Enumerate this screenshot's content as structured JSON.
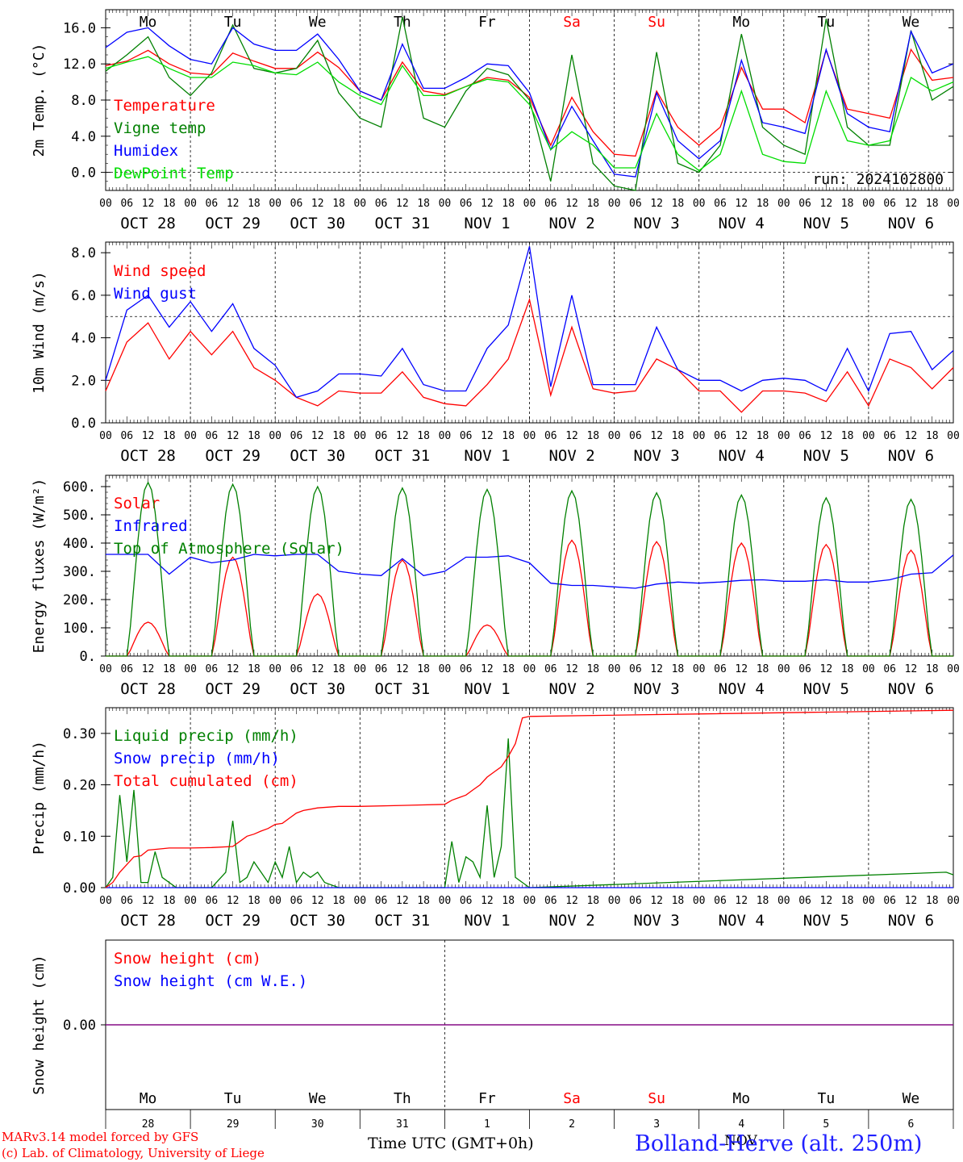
{
  "footer": {
    "model_line": "MARv3.14 model forced by GFS",
    "lab_line": "(c) Lab. of Climatology, University of Liege",
    "time_axis_label": "Time UTC (GMT+0h)",
    "station_label": "Bolland-Herve (alt. 250m)",
    "bottom_month": "NOV"
  },
  "colors": {
    "red": "#ff0000",
    "green": "#008000",
    "blue": "#0000ff",
    "lightgreen": "#00dd00",
    "purple": "#800080",
    "black": "#000000"
  },
  "days": {
    "weekdays": [
      "Mo",
      "Tu",
      "We",
      "Th",
      "Fr",
      "Sa",
      "Su",
      "Mo",
      "Tu",
      "We"
    ],
    "weekday_colors": [
      "black",
      "black",
      "black",
      "black",
      "black",
      "red",
      "red",
      "black",
      "black",
      "black"
    ],
    "dates": [
      "OCT 28",
      "OCT 29",
      "OCT 30",
      "OCT 31",
      "NOV 1",
      "NOV 2",
      "NOV 3",
      "NOV 4",
      "NOV 5",
      "NOV 6"
    ],
    "day_numbers": [
      "28",
      "29",
      "30",
      "31",
      "1",
      "2",
      "3",
      "4",
      "5",
      "6"
    ],
    "hour_ticks": [
      "00",
      "06",
      "12",
      "18"
    ],
    "final_hour": "00"
  },
  "chart_data": [
    {
      "type": "line",
      "id": "temp",
      "ylabel": "2m Temp. (°C)",
      "ylim": [
        -2.0,
        18.0
      ],
      "yticks": [
        "0.0",
        "4.0",
        "8.0",
        "12.0",
        "16.0"
      ],
      "yticks_values": [
        0,
        4,
        8,
        12,
        16
      ],
      "reference_line": 0,
      "annotation": "run: 2024102800",
      "x_unit": "hours since OCT 28 00 UTC",
      "x": [
        0,
        6,
        12,
        18,
        24,
        30,
        36,
        42,
        48,
        54,
        60,
        66,
        72,
        78,
        84,
        90,
        96,
        102,
        108,
        114,
        120,
        126,
        132,
        138,
        144,
        150,
        156,
        162,
        168,
        174,
        180,
        186,
        192,
        198,
        204,
        210,
        216,
        222,
        228,
        234,
        240
      ],
      "series": [
        {
          "name": "Temperature",
          "color": "red",
          "values": [
            11.8,
            12.3,
            13.5,
            12.0,
            11.0,
            10.8,
            13.2,
            12.3,
            11.5,
            11.5,
            13.3,
            11.6,
            9.0,
            8.0,
            12.2,
            9.0,
            8.6,
            9.5,
            10.5,
            10.2,
            8.3,
            3.0,
            8.3,
            4.5,
            2.0,
            1.8,
            9.0,
            5.0,
            3.0,
            5.0,
            11.6,
            7.0,
            7.0,
            5.5,
            13.5,
            7.0,
            6.5,
            6.0,
            13.6,
            10.2,
            10.5
          ]
        },
        {
          "name": "Vigne temp",
          "color": "green",
          "values": [
            11.2,
            13.0,
            15.0,
            10.5,
            8.5,
            11.0,
            16.3,
            11.5,
            11.0,
            11.5,
            14.6,
            8.8,
            6.0,
            5.0,
            17.2,
            6.0,
            5.0,
            9.0,
            11.5,
            10.8,
            8.0,
            -1.0,
            13.0,
            1.0,
            -1.5,
            -2.0,
            13.3,
            1.0,
            0.0,
            3.0,
            15.3,
            5.0,
            3.0,
            2.0,
            17.0,
            5.0,
            3.0,
            3.0,
            15.7,
            8.0,
            9.5
          ]
        },
        {
          "name": "Humidex",
          "color": "blue",
          "values": [
            13.8,
            15.5,
            16.0,
            14.0,
            12.5,
            12.0,
            16.0,
            14.2,
            13.5,
            13.5,
            15.3,
            12.5,
            9.0,
            8.0,
            14.2,
            9.3,
            9.3,
            10.5,
            12.0,
            11.8,
            8.8,
            2.5,
            7.3,
            3.5,
            -0.2,
            -0.5,
            8.8,
            3.5,
            1.5,
            3.5,
            12.4,
            5.5,
            5.0,
            4.3,
            13.6,
            6.5,
            5.0,
            4.5,
            15.6,
            11.0,
            12.0
          ]
        },
        {
          "name": "DewPoint Temp",
          "color": "lightgreen",
          "values": [
            11.5,
            12.2,
            12.8,
            11.5,
            10.5,
            10.5,
            12.2,
            11.8,
            11.0,
            10.8,
            12.2,
            10.0,
            8.5,
            7.5,
            11.8,
            8.5,
            8.5,
            9.5,
            10.3,
            10.0,
            7.5,
            2.5,
            4.5,
            3.0,
            0.5,
            0.5,
            6.5,
            2.0,
            0.2,
            2.0,
            9.0,
            2.0,
            1.2,
            1.0,
            9.0,
            3.5,
            3.0,
            3.5,
            10.5,
            9.0,
            10.0
          ]
        }
      ]
    },
    {
      "type": "line",
      "id": "wind",
      "ylabel": "10m Wind (m/s)",
      "ylim": [
        0.0,
        8.5
      ],
      "yticks": [
        "0.0",
        "2.0",
        "4.0",
        "6.0",
        "8.0"
      ],
      "yticks_values": [
        0,
        2,
        4,
        6,
        8
      ],
      "reference_line": 5,
      "x_unit": "hours since OCT 28 00 UTC",
      "x": [
        0,
        6,
        12,
        18,
        24,
        30,
        36,
        42,
        48,
        54,
        60,
        66,
        72,
        78,
        84,
        90,
        96,
        102,
        108,
        114,
        120,
        126,
        132,
        138,
        144,
        150,
        156,
        162,
        168,
        174,
        180,
        186,
        192,
        198,
        204,
        210,
        216,
        222,
        228,
        234,
        240
      ],
      "series": [
        {
          "name": "Wind speed",
          "color": "red",
          "values": [
            1.5,
            3.8,
            4.7,
            3.0,
            4.3,
            3.2,
            4.3,
            2.6,
            2.0,
            1.2,
            0.8,
            1.5,
            1.4,
            1.4,
            2.4,
            1.2,
            0.9,
            0.8,
            1.8,
            3.0,
            5.8,
            1.3,
            4.5,
            1.6,
            1.4,
            1.5,
            3.0,
            2.5,
            1.5,
            1.5,
            0.5,
            1.5,
            1.5,
            1.4,
            1.0,
            2.4,
            0.8,
            3.0,
            2.6,
            1.6,
            2.6
          ]
        },
        {
          "name": "Wind gust",
          "color": "blue",
          "values": [
            2.0,
            5.3,
            6.0,
            4.5,
            5.7,
            4.3,
            5.6,
            3.5,
            2.7,
            1.2,
            1.5,
            2.3,
            2.3,
            2.2,
            3.5,
            1.8,
            1.5,
            1.5,
            3.5,
            4.6,
            8.3,
            1.7,
            6.0,
            1.8,
            1.8,
            1.8,
            4.5,
            2.5,
            2.0,
            2.0,
            1.5,
            2.0,
            2.1,
            2.0,
            1.5,
            3.5,
            1.5,
            4.2,
            4.3,
            2.5,
            3.4
          ]
        }
      ]
    },
    {
      "type": "line",
      "id": "energy",
      "ylabel": "Energy fluxes (W/m²)",
      "ylim": [
        0,
        640
      ],
      "yticks": [
        "0.",
        "100.",
        "200.",
        "300.",
        "400.",
        "500.",
        "600."
      ],
      "yticks_values": [
        0,
        100,
        200,
        300,
        400,
        500,
        600
      ],
      "x_unit": "hours since OCT 28 00 UTC",
      "daily_peak_hour": 12,
      "daytime_hours": [
        6,
        18
      ],
      "series": [
        {
          "name": "Solar",
          "color": "red",
          "daily_peaks": [
            120,
            350,
            220,
            340,
            110,
            410,
            405,
            400,
            395,
            375
          ]
        },
        {
          "name": "Infrared",
          "color": "blue",
          "x": [
            0,
            12,
            18,
            24,
            30,
            36,
            42,
            48,
            54,
            60,
            66,
            72,
            78,
            84,
            90,
            96,
            102,
            108,
            114,
            120,
            126,
            132,
            138,
            144,
            150,
            156,
            162,
            168,
            174,
            180,
            186,
            192,
            198,
            204,
            210,
            216,
            222,
            228,
            234,
            240
          ],
          "values": [
            360,
            360,
            290,
            350,
            330,
            340,
            360,
            355,
            360,
            360,
            300,
            290,
            285,
            345,
            285,
            300,
            350,
            350,
            355,
            330,
            258,
            250,
            250,
            245,
            240,
            255,
            262,
            258,
            262,
            268,
            270,
            265,
            265,
            270,
            262,
            262,
            270,
            290,
            295,
            358
          ]
        },
        {
          "name": "Top of Atmosphere (Solar)",
          "color": "green",
          "daily_peaks": [
            615,
            608,
            600,
            595,
            590,
            585,
            578,
            570,
            560,
            555
          ]
        }
      ]
    },
    {
      "type": "line",
      "id": "precip",
      "ylabel": "Precip (mm/h)",
      "ylim": [
        0,
        0.35
      ],
      "yticks": [
        "0.00",
        "0.10",
        "0.20",
        "0.30"
      ],
      "yticks_values": [
        0,
        0.1,
        0.2,
        0.3
      ],
      "x_unit": "hours since OCT 28 00 UTC",
      "series": [
        {
          "name": "Liquid precip (mm/h)",
          "color": "green",
          "x": [
            0,
            2,
            4,
            6,
            8,
            10,
            12,
            14,
            16,
            20,
            24,
            30,
            34,
            36,
            38,
            40,
            42,
            44,
            46,
            48,
            50,
            52,
            54,
            56,
            58,
            60,
            62,
            64,
            66,
            70,
            96,
            98,
            100,
            102,
            104,
            106,
            108,
            110,
            112,
            114,
            116,
            118,
            120,
            238,
            240
          ],
          "values": [
            0,
            0.02,
            0.18,
            0.05,
            0.19,
            0.01,
            0.01,
            0.07,
            0.02,
            0,
            0,
            0,
            0.03,
            0.13,
            0.01,
            0.02,
            0.05,
            0.03,
            0.01,
            0.05,
            0.02,
            0.08,
            0.01,
            0.03,
            0.02,
            0.03,
            0.01,
            0.005,
            0,
            0,
            0,
            0.09,
            0.01,
            0.06,
            0.05,
            0.02,
            0.16,
            0.02,
            0.08,
            0.29,
            0.02,
            0.01,
            0,
            0.03,
            0.025
          ]
        },
        {
          "name": "Snow precip (mm/h)",
          "color": "blue",
          "x": [
            0,
            240
          ],
          "values": [
            0,
            0
          ]
        },
        {
          "name": "Total cumulated (cm)",
          "color": "red",
          "x": [
            0,
            2,
            4,
            8,
            10,
            12,
            18,
            24,
            30,
            36,
            38,
            40,
            42,
            44,
            46,
            48,
            50,
            52,
            54,
            56,
            60,
            66,
            72,
            84,
            96,
            98,
            100,
            102,
            104,
            106,
            108,
            110,
            112,
            114,
            116,
            118,
            120,
            240
          ],
          "values": [
            0,
            0.01,
            0.03,
            0.06,
            0.062,
            0.073,
            0.077,
            0.077,
            0.078,
            0.08,
            0.09,
            0.1,
            0.104,
            0.11,
            0.115,
            0.123,
            0.125,
            0.135,
            0.145,
            0.15,
            0.155,
            0.158,
            0.158,
            0.16,
            0.162,
            0.17,
            0.175,
            0.18,
            0.19,
            0.2,
            0.215,
            0.225,
            0.235,
            0.255,
            0.28,
            0.33,
            0.333,
            0.345
          ]
        }
      ]
    },
    {
      "type": "line",
      "id": "snow",
      "ylabel": "Snow height (cm)",
      "ylim": [
        -1,
        1
      ],
      "yticks": [
        "0.00"
      ],
      "yticks_values": [
        0
      ],
      "x_unit": "hours since OCT 28 00 UTC",
      "series": [
        {
          "name": "Snow height (cm)",
          "color": "red",
          "x": [
            0,
            240
          ],
          "values": [
            0,
            0
          ]
        },
        {
          "name": "Snow height (cm W.E.)",
          "color": "blue",
          "x": [
            0,
            240
          ],
          "values": [
            0,
            0
          ]
        }
      ]
    }
  ]
}
